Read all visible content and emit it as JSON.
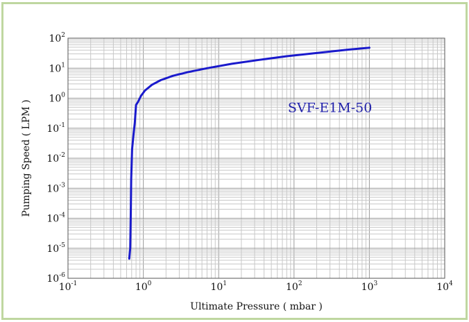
{
  "chart_data": {
    "type": "line",
    "title": "",
    "xlabel": "Ultimate Pressure ( mbar )",
    "ylabel": "Pumping Speed ( LPM )",
    "x_scale": "log",
    "y_scale": "log",
    "xlim": [
      0.1,
      10000
    ],
    "ylim": [
      1e-06,
      100
    ],
    "grid": true,
    "x_ticks": [
      {
        "base": "10",
        "exp": "-1",
        "value": 0.1
      },
      {
        "base": "10",
        "exp": "0",
        "value": 1
      },
      {
        "base": "10",
        "exp": "1",
        "value": 10
      },
      {
        "base": "10",
        "exp": "2",
        "value": 100
      },
      {
        "base": "10",
        "exp": "3",
        "value": 1000
      },
      {
        "base": "10",
        "exp": "4",
        "value": 10000
      }
    ],
    "y_ticks": [
      {
        "base": "10",
        "exp": "2",
        "value": 100
      },
      {
        "base": "10",
        "exp": "1",
        "value": 10
      },
      {
        "base": "10",
        "exp": "0",
        "value": 1
      },
      {
        "base": "10",
        "exp": "-1",
        "value": 0.1
      },
      {
        "base": "10",
        "exp": "-2",
        "value": 0.01
      },
      {
        "base": "10",
        "exp": "-3",
        "value": 0.001
      },
      {
        "base": "10",
        "exp": "-4",
        "value": 0.0001
      },
      {
        "base": "10",
        "exp": "-5",
        "value": 1e-05
      },
      {
        "base": "10",
        "exp": "-6",
        "value": 1e-06
      }
    ],
    "series": [
      {
        "color": "#1a1acc",
        "points": [
          {
            "x": 0.65,
            "y": 4.5e-06
          },
          {
            "x": 0.67,
            "y": 1e-05
          },
          {
            "x": 0.68,
            "y": 0.0001
          },
          {
            "x": 0.69,
            "y": 0.002
          },
          {
            "x": 0.71,
            "y": 0.02
          },
          {
            "x": 0.74,
            "y": 0.06
          },
          {
            "x": 0.77,
            "y": 0.15
          },
          {
            "x": 0.8,
            "y": 0.6
          },
          {
            "x": 0.85,
            "y": 0.75
          },
          {
            "x": 0.93,
            "y": 1.2
          },
          {
            "x": 1.05,
            "y": 1.8
          },
          {
            "x": 1.3,
            "y": 2.8
          },
          {
            "x": 1.7,
            "y": 4.0
          },
          {
            "x": 2.5,
            "y": 5.6
          },
          {
            "x": 4,
            "y": 7.5
          },
          {
            "x": 7,
            "y": 10
          },
          {
            "x": 15,
            "y": 14
          },
          {
            "x": 35,
            "y": 19
          },
          {
            "x": 80,
            "y": 25
          },
          {
            "x": 200,
            "y": 32
          },
          {
            "x": 500,
            "y": 41
          },
          {
            "x": 1000,
            "y": 48
          }
        ]
      }
    ],
    "annotations": [
      {
        "text": "SVF-E1M-50",
        "x": 300,
        "y": 1.0
      }
    ]
  },
  "colors": {
    "frame_border": "#bfd7a0",
    "grid_line": "#c8c8c8",
    "curve": "#1a1acc"
  }
}
